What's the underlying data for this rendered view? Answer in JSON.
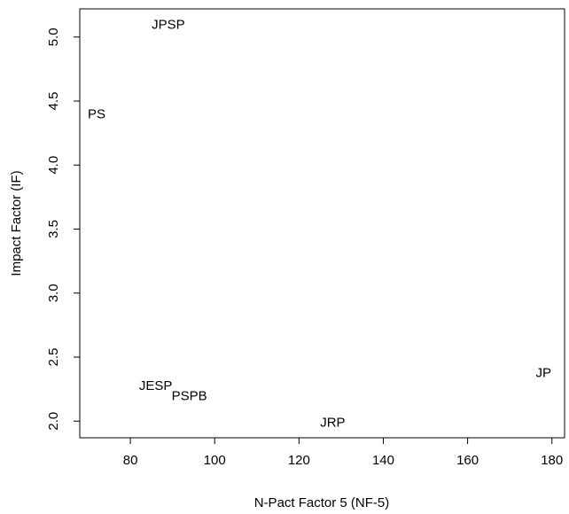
{
  "chart_data": {
    "type": "scatter",
    "title": "",
    "xlabel": "N-Pact Factor 5 (NF-5)",
    "ylabel": "Impact Factor (IF)",
    "xlim": [
      68,
      183
    ],
    "ylim": [
      1.87,
      5.22
    ],
    "x_ticks": [
      80,
      100,
      120,
      140,
      160,
      180
    ],
    "y_ticks": [
      2.0,
      2.5,
      3.0,
      3.5,
      4.0,
      4.5,
      5.0
    ],
    "x_tick_labels": [
      "80",
      "100",
      "120",
      "140",
      "160",
      "180"
    ],
    "y_tick_labels": [
      "2.0",
      "2.5",
      "3.0",
      "3.5",
      "4.0",
      "4.5",
      "5.0"
    ],
    "grid": false,
    "points": [
      {
        "label": "JPSP",
        "x": 89,
        "y": 5.1
      },
      {
        "label": "PS",
        "x": 72,
        "y": 4.4
      },
      {
        "label": "JESP",
        "x": 86,
        "y": 2.28
      },
      {
        "label": "PSPB",
        "x": 94,
        "y": 2.2
      },
      {
        "label": "JRP",
        "x": 128,
        "y": 1.99
      },
      {
        "label": "JP",
        "x": 178,
        "y": 2.38
      }
    ]
  }
}
